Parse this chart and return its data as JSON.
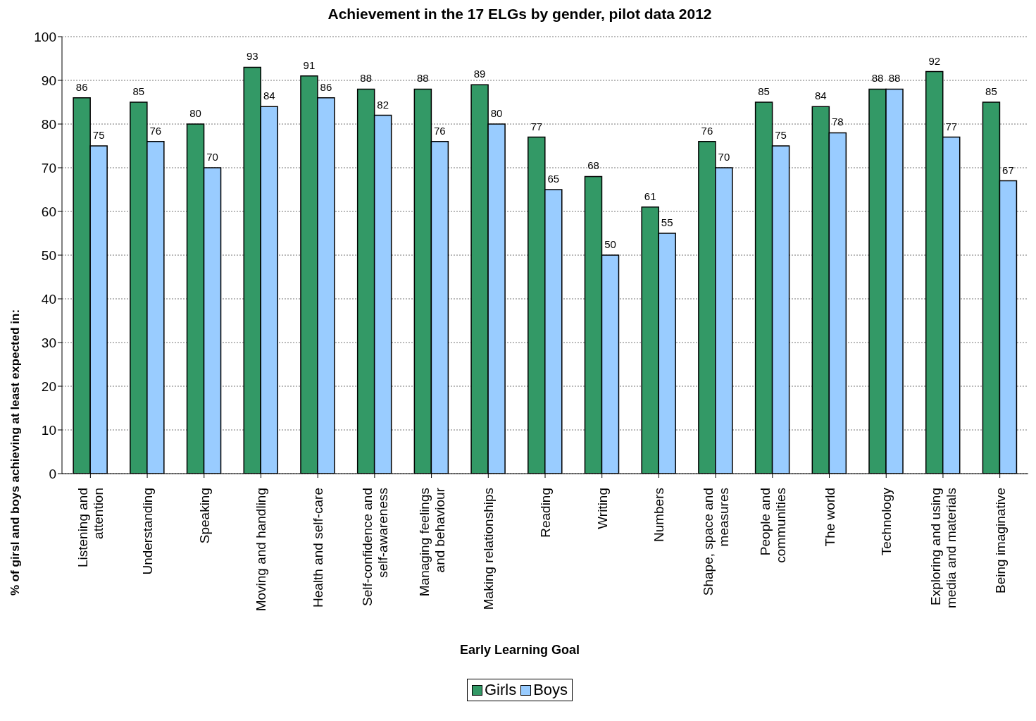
{
  "chart_data": {
    "type": "bar",
    "title": "Achievement in the 17 ELGs by gender, pilot data 2012",
    "xlabel": "Early Learning Goal",
    "ylabel": "% of girsl and boys achieving at least expected in:",
    "categories": [
      "Listening and attention",
      "Understanding",
      "Speaking",
      "Moving and handling",
      "Health and self-care",
      "Self-confidence and self-awareness",
      "Managing feelings and behaviour",
      "Making relationships",
      "Reading",
      "Writing",
      "Numbers",
      "Shape, space and measures",
      "People and communities",
      "The world",
      "Technology",
      "Exploring and using media and materials",
      "Being imaginative"
    ],
    "series": [
      {
        "name": "Girls",
        "color": "#339966",
        "values": [
          86,
          85,
          80,
          93,
          91,
          88,
          88,
          89,
          77,
          68,
          61,
          76,
          85,
          84,
          88,
          92,
          85
        ]
      },
      {
        "name": "Boys",
        "color": "#99ccff",
        "values": [
          75,
          76,
          70,
          84,
          86,
          82,
          76,
          80,
          65,
          50,
          55,
          70,
          75,
          78,
          88,
          77,
          67
        ]
      }
    ],
    "ylim": [
      0,
      100
    ],
    "yticks": [
      0,
      10,
      20,
      30,
      40,
      50,
      60,
      70,
      80,
      90,
      100
    ],
    "grid": "y",
    "legend": "bottom",
    "data_labels": true
  }
}
